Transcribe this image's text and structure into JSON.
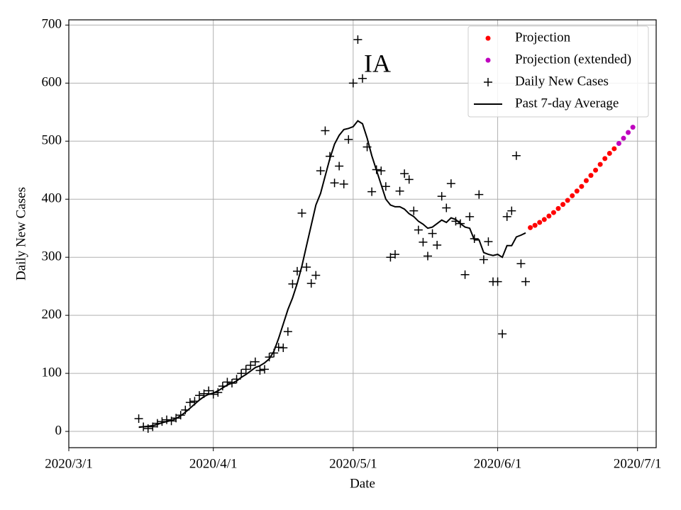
{
  "chart_data": {
    "type": "line",
    "annotation": "IA",
    "xlabel": "Date",
    "ylabel": "Daily New Cases",
    "xlim": [
      "2020/3/1",
      "2020/7/5"
    ],
    "xticks": [
      "2020/3/1",
      "2020/4/1",
      "2020/5/1",
      "2020/6/1",
      "2020/7/1"
    ],
    "ylim": [
      -28,
      709
    ],
    "yticks": [
      0,
      100,
      200,
      300,
      400,
      500,
      600,
      700
    ],
    "grid": true,
    "legend": "upper right",
    "series": [
      {
        "name": "Projection",
        "color": "#ff0000",
        "style": "dot",
        "x": [
          "2020/6/8",
          "2020/6/9",
          "2020/6/10",
          "2020/6/11",
          "2020/6/12",
          "2020/6/13",
          "2020/6/14",
          "2020/6/15",
          "2020/6/16",
          "2020/6/17",
          "2020/6/18",
          "2020/6/19",
          "2020/6/20",
          "2020/6/21",
          "2020/6/22",
          "2020/6/23",
          "2020/6/24",
          "2020/6/25",
          "2020/6/26"
        ],
        "values": [
          351,
          355,
          360,
          365,
          371,
          377,
          384,
          391,
          398,
          406,
          414,
          422,
          432,
          441,
          450,
          460,
          470,
          479,
          487
        ]
      },
      {
        "name": "Projection (extended)",
        "color": "#bf00bf",
        "style": "dot",
        "x": [
          "2020/6/27",
          "2020/6/28",
          "2020/6/29",
          "2020/6/30"
        ],
        "values": [
          496,
          505,
          515,
          524
        ]
      },
      {
        "name": "Daily New Cases",
        "color": "#000000",
        "style": "plus",
        "x": [
          "2020/3/16",
          "2020/3/17",
          "2020/3/18",
          "2020/3/19",
          "2020/3/20",
          "2020/3/21",
          "2020/3/22",
          "2020/3/23",
          "2020/3/24",
          "2020/3/25",
          "2020/3/26",
          "2020/3/27",
          "2020/3/28",
          "2020/3/29",
          "2020/3/30",
          "2020/3/31",
          "2020/4/1",
          "2020/4/2",
          "2020/4/3",
          "2020/4/4",
          "2020/4/5",
          "2020/4/6",
          "2020/4/7",
          "2020/4/8",
          "2020/4/9",
          "2020/4/10",
          "2020/4/11",
          "2020/4/12",
          "2020/4/13",
          "2020/4/14",
          "2020/4/15",
          "2020/4/16",
          "2020/4/17",
          "2020/4/18",
          "2020/4/19",
          "2020/4/20",
          "2020/4/21",
          "2020/4/22",
          "2020/4/23",
          "2020/4/24",
          "2020/4/25",
          "2020/4/26",
          "2020/4/27",
          "2020/4/28",
          "2020/4/29",
          "2020/4/30",
          "2020/5/1",
          "2020/5/2",
          "2020/5/3",
          "2020/5/4",
          "2020/5/5",
          "2020/5/6",
          "2020/5/7",
          "2020/5/8",
          "2020/5/9",
          "2020/5/10",
          "2020/5/11",
          "2020/5/12",
          "2020/5/13",
          "2020/5/14",
          "2020/5/15",
          "2020/5/16",
          "2020/5/17",
          "2020/5/18",
          "2020/5/19",
          "2020/5/20",
          "2020/5/21",
          "2020/5/22",
          "2020/5/23",
          "2020/5/24",
          "2020/5/25",
          "2020/5/26",
          "2020/5/27",
          "2020/5/28",
          "2020/5/29",
          "2020/5/30",
          "2020/5/31",
          "2020/6/1",
          "2020/6/2",
          "2020/6/3",
          "2020/6/4",
          "2020/6/5",
          "2020/6/6",
          "2020/6/7"
        ],
        "values": [
          22,
          8,
          5,
          8,
          14,
          17,
          20,
          18,
          23,
          28,
          37,
          50,
          52,
          62,
          65,
          70,
          64,
          67,
          78,
          85,
          83,
          90,
          100,
          107,
          114,
          120,
          105,
          107,
          128,
          135,
          145,
          144,
          172,
          254,
          276,
          376,
          283,
          255,
          269,
          449,
          518,
          474,
          428,
          457,
          426,
          503,
          600,
          675,
          608,
          490,
          413,
          451,
          449,
          422,
          300,
          305,
          414,
          444,
          434,
          380,
          347,
          326,
          302,
          341,
          321,
          405,
          385,
          427,
          362,
          358,
          270,
          370,
          332,
          408,
          296,
          327,
          258,
          258,
          168,
          370,
          380,
          475,
          289,
          258
        ]
      },
      {
        "name": "Past 7-day Average",
        "color": "#000000",
        "style": "line",
        "x": [
          "2020/3/16",
          "2020/3/17",
          "2020/3/18",
          "2020/3/19",
          "2020/3/20",
          "2020/3/21",
          "2020/3/22",
          "2020/3/23",
          "2020/3/24",
          "2020/3/25",
          "2020/3/26",
          "2020/3/27",
          "2020/3/28",
          "2020/3/29",
          "2020/3/30",
          "2020/3/31",
          "2020/4/1",
          "2020/4/2",
          "2020/4/3",
          "2020/4/4",
          "2020/4/5",
          "2020/4/6",
          "2020/4/7",
          "2020/4/8",
          "2020/4/9",
          "2020/4/10",
          "2020/4/11",
          "2020/4/12",
          "2020/4/13",
          "2020/4/14",
          "2020/4/15",
          "2020/4/16",
          "2020/4/17",
          "2020/4/18",
          "2020/4/19",
          "2020/4/20",
          "2020/4/21",
          "2020/4/22",
          "2020/4/23",
          "2020/4/24",
          "2020/4/25",
          "2020/4/26",
          "2020/4/27",
          "2020/4/28",
          "2020/4/29",
          "2020/4/30",
          "2020/5/1",
          "2020/5/2",
          "2020/5/3",
          "2020/5/4",
          "2020/5/5",
          "2020/5/6",
          "2020/5/7",
          "2020/5/8",
          "2020/5/9",
          "2020/5/10",
          "2020/5/11",
          "2020/5/12",
          "2020/5/13",
          "2020/5/14",
          "2020/5/15",
          "2020/5/16",
          "2020/5/17",
          "2020/5/18",
          "2020/5/19",
          "2020/5/20",
          "2020/5/21",
          "2020/5/22",
          "2020/5/23",
          "2020/5/24",
          "2020/5/25",
          "2020/5/26",
          "2020/5/27",
          "2020/5/28",
          "2020/5/29",
          "2020/5/30",
          "2020/5/31",
          "2020/6/1",
          "2020/6/2",
          "2020/6/3",
          "2020/6/4",
          "2020/6/5",
          "2020/6/6",
          "2020/6/7"
        ],
        "values": [
          7,
          8,
          9,
          10,
          12,
          15,
          17,
          19,
          22,
          27,
          33,
          40,
          47,
          54,
          60,
          64,
          66,
          70,
          75,
          80,
          83,
          87,
          93,
          98,
          104,
          110,
          113,
          118,
          125,
          138,
          160,
          185,
          210,
          230,
          255,
          285,
          320,
          355,
          390,
          410,
          440,
          470,
          495,
          510,
          520,
          522,
          525,
          535,
          530,
          505,
          475,
          450,
          425,
          400,
          390,
          387,
          387,
          383,
          375,
          370,
          362,
          357,
          350,
          352,
          358,
          364,
          360,
          368,
          365,
          358,
          352,
          350,
          330,
          330,
          308,
          305,
          303,
          305,
          300,
          320,
          320,
          335,
          338,
          342
        ]
      }
    ]
  }
}
